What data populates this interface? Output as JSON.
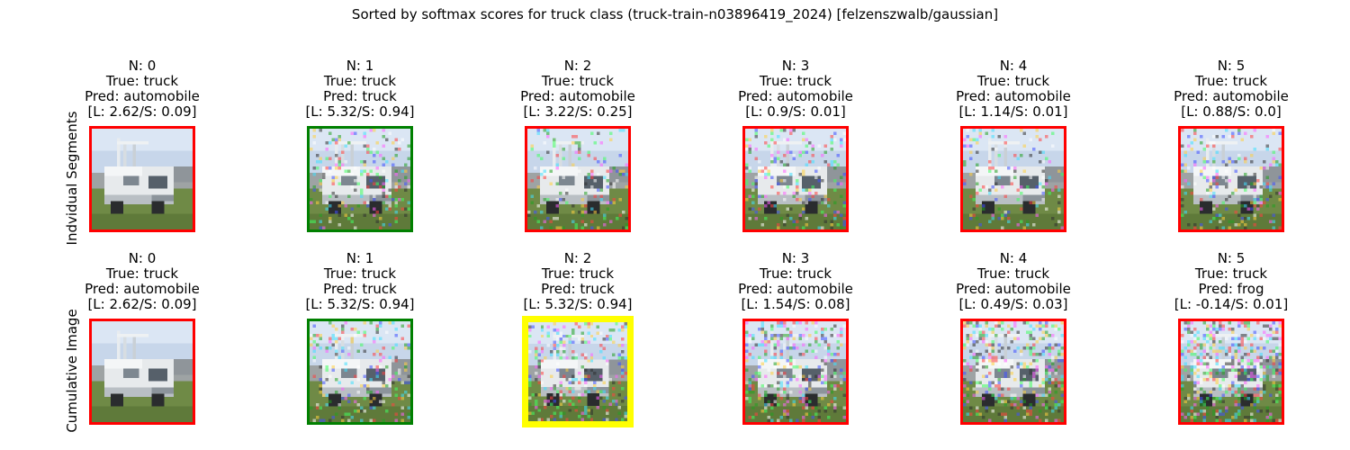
{
  "title": "Sorted by softmax scores for truck class (truck-train-n03896419_2024) [felzenszwalb/gaussian]",
  "row_labels": [
    "Indvidual Segments",
    "Cumulative Image"
  ],
  "frame_colors": {
    "wrong": "#ff0000",
    "correct": "#008000",
    "best": "#ffff00"
  },
  "rows": [
    {
      "cells": [
        {
          "n": "N: 0",
          "true": "True: truck",
          "pred": "Pred: automobile",
          "scores": "[L: 2.62/S: 0.09]",
          "frame": "wrong",
          "noise": 0.0
        },
        {
          "n": "N: 1",
          "true": "True: truck",
          "pred": "Pred: truck",
          "scores": "[L: 5.32/S: 0.94]",
          "frame": "correct",
          "noise": 0.35
        },
        {
          "n": "N: 2",
          "true": "True: truck",
          "pred": "Pred: automobile",
          "scores": "[L: 3.22/S: 0.25]",
          "frame": "wrong",
          "noise": 0.3
        },
        {
          "n": "N: 3",
          "true": "True: truck",
          "pred": "Pred: automobile",
          "scores": "[L: 0.9/S: 0.01]",
          "frame": "wrong",
          "noise": 0.4
        },
        {
          "n": "N: 4",
          "true": "True: truck",
          "pred": "Pred: automobile",
          "scores": "[L: 1.14/S: 0.01]",
          "frame": "wrong",
          "noise": 0.3
        },
        {
          "n": "N: 5",
          "true": "True: truck",
          "pred": "Pred: automobile",
          "scores": "[L: 0.88/S: 0.0]",
          "frame": "wrong",
          "noise": 0.35
        }
      ]
    },
    {
      "cells": [
        {
          "n": "N: 0",
          "true": "True: truck",
          "pred": "Pred: automobile",
          "scores": "[L: 2.62/S: 0.09]",
          "frame": "wrong",
          "noise": 0.0
        },
        {
          "n": "N: 1",
          "true": "True: truck",
          "pred": "Pred: truck",
          "scores": "[L: 5.32/S: 0.94]",
          "frame": "correct",
          "noise": 0.35
        },
        {
          "n": "N: 2",
          "true": "True: truck",
          "pred": "Pred: truck",
          "scores": "[L: 5.32/S: 0.94]",
          "frame": "best",
          "noise": 0.5
        },
        {
          "n": "N: 3",
          "true": "True: truck",
          "pred": "Pred: automobile",
          "scores": "[L: 1.54/S: 0.08]",
          "frame": "wrong",
          "noise": 0.55
        },
        {
          "n": "N: 4",
          "true": "True: truck",
          "pred": "Pred: automobile",
          "scores": "[L: 0.49/S: 0.03]",
          "frame": "wrong",
          "noise": 0.6
        },
        {
          "n": "N: 5",
          "true": "True: truck",
          "pred": "Pred: frog",
          "scores": "[L: -0.14/S: 0.01]",
          "frame": "wrong",
          "noise": 0.7
        }
      ]
    }
  ]
}
